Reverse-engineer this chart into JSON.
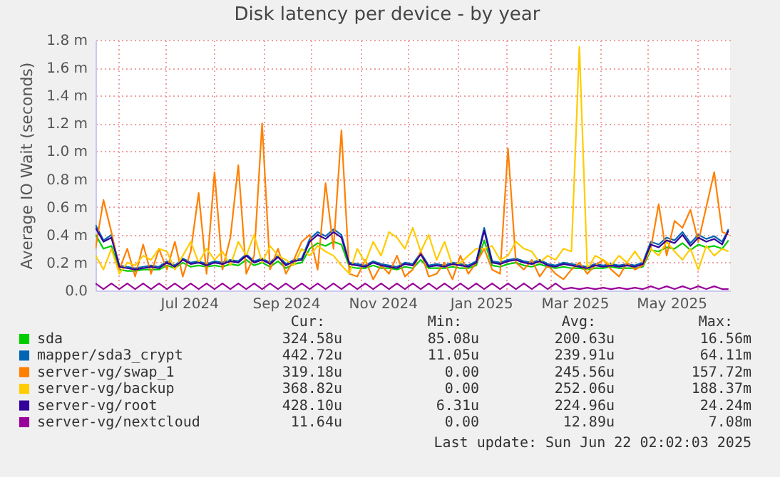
{
  "chart_data": {
    "type": "line",
    "title": "Disk latency per device - by year",
    "ylabel": "Average IO Wait (seconds)",
    "legend": "bottom",
    "grid": true,
    "x": [
      "2024-05-18",
      "2024-05-23",
      "2024-05-28",
      "2024-06-02",
      "2024-06-07",
      "2024-06-12",
      "2024-06-17",
      "2024-06-22",
      "2024-06-27",
      "2024-07-02",
      "2024-07-07",
      "2024-07-12",
      "2024-07-17",
      "2024-07-22",
      "2024-07-27",
      "2024-08-01",
      "2024-08-06",
      "2024-08-11",
      "2024-08-16",
      "2024-08-21",
      "2024-08-26",
      "2024-08-31",
      "2024-09-05",
      "2024-09-10",
      "2024-09-15",
      "2024-09-20",
      "2024-09-25",
      "2024-09-30",
      "2024-10-05",
      "2024-10-10",
      "2024-10-15",
      "2024-10-20",
      "2024-10-25",
      "2024-10-30",
      "2024-11-04",
      "2024-11-09",
      "2024-11-14",
      "2024-11-19",
      "2024-11-24",
      "2024-11-29",
      "2024-12-04",
      "2024-12-09",
      "2024-12-14",
      "2024-12-19",
      "2024-12-24",
      "2024-12-29",
      "2025-01-03",
      "2025-01-08",
      "2025-01-13",
      "2025-01-18",
      "2025-01-23",
      "2025-01-28",
      "2025-02-02",
      "2025-02-07",
      "2025-02-12",
      "2025-02-17",
      "2025-02-22",
      "2025-02-27",
      "2025-03-04",
      "2025-03-09",
      "2025-03-14",
      "2025-03-19",
      "2025-03-24",
      "2025-03-29",
      "2025-04-03",
      "2025-04-08",
      "2025-04-13",
      "2025-04-18",
      "2025-04-23",
      "2025-04-28",
      "2025-05-03",
      "2025-05-08",
      "2025-05-13",
      "2025-05-18",
      "2025-05-23",
      "2025-05-28",
      "2025-06-02",
      "2025-06-07",
      "2025-06-12",
      "2025-06-17",
      "2025-06-21"
    ],
    "series": [
      {
        "name": "sda",
        "color": "#00cc00",
        "values": [
          0.4,
          0.3,
          0.32,
          0.15,
          0.14,
          0.14,
          0.15,
          0.15,
          0.15,
          0.18,
          0.16,
          0.2,
          0.17,
          0.18,
          0.17,
          0.18,
          0.17,
          0.19,
          0.18,
          0.22,
          0.18,
          0.2,
          0.17,
          0.21,
          0.16,
          0.19,
          0.2,
          0.3,
          0.34,
          0.32,
          0.35,
          0.33,
          0.17,
          0.16,
          0.16,
          0.18,
          0.16,
          0.16,
          0.15,
          0.17,
          0.16,
          0.22,
          0.16,
          0.16,
          0.16,
          0.17,
          0.16,
          0.16,
          0.18,
          0.36,
          0.18,
          0.17,
          0.19,
          0.2,
          0.18,
          0.17,
          0.19,
          0.17,
          0.16,
          0.17,
          0.16,
          0.16,
          0.15,
          0.16,
          0.16,
          0.17,
          0.16,
          0.16,
          0.16,
          0.17,
          0.29,
          0.28,
          0.31,
          0.3,
          0.34,
          0.29,
          0.33,
          0.31,
          0.32,
          0.3,
          0.36
        ]
      },
      {
        "name": "mapper/sda3_crypt",
        "color": "#0066b3",
        "values": [
          0.47,
          0.36,
          0.4,
          0.18,
          0.17,
          0.16,
          0.17,
          0.18,
          0.17,
          0.21,
          0.18,
          0.23,
          0.2,
          0.21,
          0.19,
          0.21,
          0.2,
          0.22,
          0.21,
          0.26,
          0.21,
          0.23,
          0.2,
          0.25,
          0.19,
          0.22,
          0.23,
          0.37,
          0.42,
          0.39,
          0.44,
          0.4,
          0.2,
          0.19,
          0.18,
          0.21,
          0.19,
          0.18,
          0.17,
          0.2,
          0.19,
          0.27,
          0.18,
          0.19,
          0.18,
          0.2,
          0.19,
          0.18,
          0.21,
          0.45,
          0.21,
          0.2,
          0.22,
          0.23,
          0.21,
          0.2,
          0.22,
          0.19,
          0.18,
          0.2,
          0.19,
          0.18,
          0.17,
          0.19,
          0.18,
          0.19,
          0.18,
          0.19,
          0.18,
          0.2,
          0.35,
          0.33,
          0.38,
          0.36,
          0.42,
          0.34,
          0.4,
          0.37,
          0.39,
          0.35,
          0.44
        ]
      },
      {
        "name": "server-vg/swap_1",
        "color": "#ff8000",
        "values": [
          0.3,
          0.65,
          0.42,
          0.15,
          0.3,
          0.1,
          0.33,
          0.12,
          0.3,
          0.15,
          0.35,
          0.1,
          0.28,
          0.7,
          0.12,
          0.85,
          0.15,
          0.38,
          0.9,
          0.12,
          0.25,
          1.2,
          0.15,
          0.3,
          0.12,
          0.22,
          0.35,
          0.4,
          0.15,
          0.77,
          0.3,
          1.15,
          0.12,
          0.1,
          0.22,
          0.08,
          0.18,
          0.12,
          0.25,
          0.1,
          0.15,
          0.28,
          0.1,
          0.12,
          0.2,
          0.08,
          0.25,
          0.12,
          0.2,
          0.3,
          0.15,
          0.12,
          1.02,
          0.2,
          0.15,
          0.22,
          0.1,
          0.18,
          0.12,
          0.08,
          0.15,
          0.2,
          0.12,
          0.18,
          0.22,
          0.15,
          0.1,
          0.2,
          0.15,
          0.18,
          0.3,
          0.62,
          0.25,
          0.5,
          0.45,
          0.58,
          0.35,
          0.6,
          0.85,
          0.42,
          0.4
        ]
      },
      {
        "name": "server-vg/backup",
        "color": "#ffcc00",
        "values": [
          0.25,
          0.15,
          0.3,
          0.12,
          0.2,
          0.18,
          0.25,
          0.22,
          0.3,
          0.28,
          0.15,
          0.25,
          0.35,
          0.2,
          0.3,
          0.22,
          0.28,
          0.18,
          0.35,
          0.25,
          0.4,
          0.2,
          0.32,
          0.25,
          0.22,
          0.18,
          0.3,
          0.25,
          0.32,
          0.28,
          0.25,
          0.18,
          0.12,
          0.3,
          0.2,
          0.35,
          0.25,
          0.42,
          0.38,
          0.3,
          0.45,
          0.28,
          0.4,
          0.22,
          0.35,
          0.18,
          0.2,
          0.25,
          0.3,
          0.3,
          0.32,
          0.22,
          0.25,
          0.35,
          0.3,
          0.28,
          0.2,
          0.25,
          0.22,
          0.3,
          0.28,
          1.75,
          0.15,
          0.25,
          0.22,
          0.18,
          0.25,
          0.2,
          0.28,
          0.2,
          0.3,
          0.25,
          0.35,
          0.28,
          0.22,
          0.3,
          0.15,
          0.32,
          0.25,
          0.3,
          0.28
        ]
      },
      {
        "name": "server-vg/root",
        "color": "#330099",
        "values": [
          0.45,
          0.35,
          0.38,
          0.17,
          0.16,
          0.15,
          0.16,
          0.17,
          0.16,
          0.2,
          0.17,
          0.22,
          0.19,
          0.2,
          0.18,
          0.2,
          0.19,
          0.21,
          0.2,
          0.25,
          0.2,
          0.22,
          0.19,
          0.24,
          0.18,
          0.21,
          0.22,
          0.35,
          0.4,
          0.37,
          0.42,
          0.38,
          0.19,
          0.18,
          0.17,
          0.2,
          0.18,
          0.17,
          0.16,
          0.19,
          0.18,
          0.26,
          0.17,
          0.18,
          0.17,
          0.19,
          0.18,
          0.17,
          0.2,
          0.43,
          0.2,
          0.19,
          0.21,
          0.22,
          0.2,
          0.19,
          0.21,
          0.18,
          0.17,
          0.19,
          0.18,
          0.17,
          0.16,
          0.18,
          0.17,
          0.18,
          0.17,
          0.18,
          0.17,
          0.19,
          0.33,
          0.31,
          0.36,
          0.34,
          0.4,
          0.32,
          0.38,
          0.35,
          0.37,
          0.33,
          0.43
        ]
      },
      {
        "name": "server-vg/nextcloud",
        "color": "#990099",
        "values": [
          0.05,
          0.01,
          0.05,
          0.01,
          0.05,
          0.01,
          0.05,
          0.01,
          0.05,
          0.01,
          0.05,
          0.01,
          0.05,
          0.01,
          0.05,
          0.01,
          0.05,
          0.01,
          0.05,
          0.01,
          0.05,
          0.01,
          0.05,
          0.01,
          0.05,
          0.01,
          0.05,
          0.01,
          0.05,
          0.01,
          0.05,
          0.01,
          0.05,
          0.01,
          0.05,
          0.01,
          0.05,
          0.01,
          0.05,
          0.01,
          0.05,
          0.01,
          0.05,
          0.01,
          0.05,
          0.01,
          0.05,
          0.01,
          0.05,
          0.01,
          0.05,
          0.01,
          0.05,
          0.01,
          0.05,
          0.01,
          0.05,
          0.01,
          0.05,
          0.01,
          0.02,
          0.01,
          0.02,
          0.01,
          0.02,
          0.01,
          0.02,
          0.01,
          0.02,
          0.01,
          0.03,
          0.01,
          0.03,
          0.01,
          0.03,
          0.01,
          0.03,
          0.01,
          0.03,
          0.01,
          0.01
        ]
      }
    ],
    "xlim": [
      "2024-05-18",
      "2025-06-22"
    ],
    "xticks": [
      {
        "value": "2024-06-01",
        "label": null
      },
      {
        "value": "2024-07-01",
        "label": null
      },
      {
        "value": "2024-08-01",
        "label": null
      },
      {
        "value": "2024-09-01",
        "label": null
      },
      {
        "value": "2024-10-01",
        "label": null
      },
      {
        "value": "2024-11-01",
        "label": null
      },
      {
        "value": "2024-12-01",
        "label": null
      },
      {
        "value": "2025-01-01",
        "label": null
      },
      {
        "value": "2025-02-01",
        "label": null
      },
      {
        "value": "2025-03-01",
        "label": null
      },
      {
        "value": "2025-04-01",
        "label": null
      },
      {
        "value": "2025-05-01",
        "label": null
      },
      {
        "value": "2025-06-01",
        "label": null
      },
      {
        "value": "2024-07-16",
        "label": "Jul 2024"
      },
      {
        "value": "2024-09-15",
        "label": "Sep 2024"
      },
      {
        "value": "2024-11-15",
        "label": "Nov 2024"
      },
      {
        "value": "2025-01-16",
        "label": "Jan 2025"
      },
      {
        "value": "2025-03-16",
        "label": "Mar 2025"
      },
      {
        "value": "2025-05-16",
        "label": "May 2025"
      }
    ],
    "ylim": [
      0,
      1.8
    ],
    "yticks": [
      {
        "value": 0,
        "label": "0.0"
      },
      {
        "value": 0.2,
        "label": "0.2 m"
      },
      {
        "value": 0.4,
        "label": "0.4 m"
      },
      {
        "value": 0.6,
        "label": "0.6 m"
      },
      {
        "value": 0.8,
        "label": "0.8 m"
      },
      {
        "value": 1.0,
        "label": "1.0 m"
      },
      {
        "value": 1.2,
        "label": "1.2 m"
      },
      {
        "value": 1.4,
        "label": "1.4 m"
      },
      {
        "value": 1.6,
        "label": "1.6 m"
      },
      {
        "value": 1.8,
        "label": "1.8 m"
      }
    ],
    "annotations": [
      "Cur:",
      "Min:",
      "Avg:",
      "Max:",
      "324.58u",
      "85.08u",
      "200.63u",
      "16.56m",
      "442.72u",
      "11.05u",
      "239.91u",
      "64.11m",
      "319.18u",
      "0.00",
      "245.56u",
      "157.72m",
      "368.82u",
      "0.00",
      "252.06u",
      "188.37m",
      "428.10u",
      "6.31u",
      "224.96u",
      "24.24m",
      "11.64u",
      "0.00",
      "12.89u",
      "7.08m",
      "Last update: Sun Jun 22 02:02:03 2025"
    ]
  }
}
